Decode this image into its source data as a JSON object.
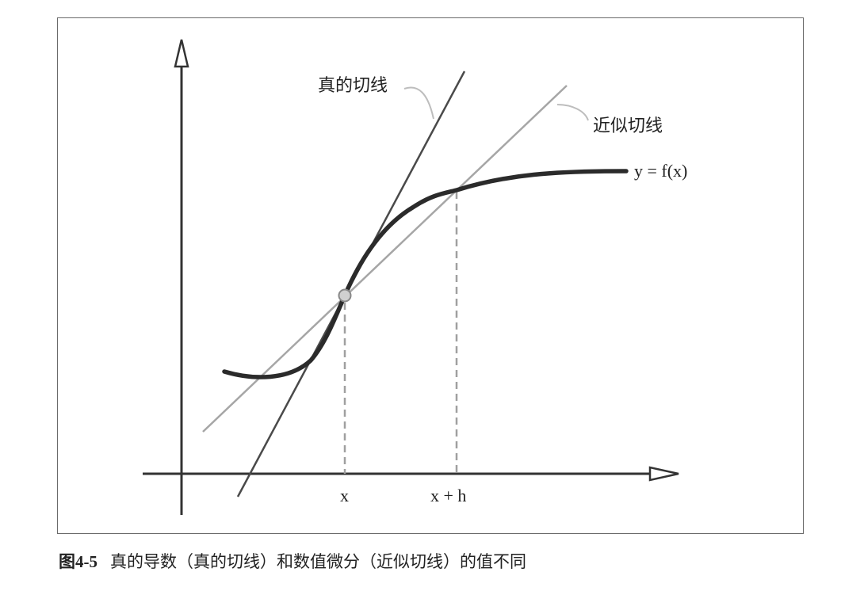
{
  "figure": {
    "labels": {
      "true_tangent": "真的切线",
      "approx_tangent": "近似切线",
      "function": "y = f(x)",
      "x_tick": "x",
      "xh_tick": "x + h"
    },
    "colors": {
      "curve": "#2b2b2b",
      "true_tangent": "#4a4a4a",
      "approx_tangent": "#a6a6a6",
      "axes": "#333333",
      "guides": "#a0a0a0",
      "point_fill": "#d0d0d0"
    }
  },
  "caption": {
    "number_prefix": "图",
    "number": "4-5",
    "text": "真的导数（真的切线）和数值微分（近似切线）的值不同"
  }
}
